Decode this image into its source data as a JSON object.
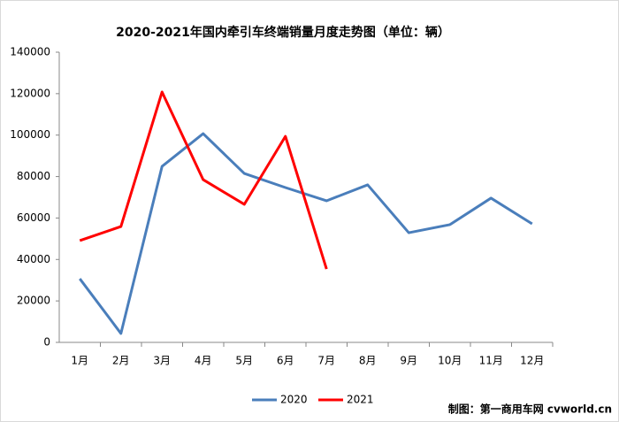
{
  "chart_data": {
    "type": "line",
    "title": "2020-2021年国内牵引车终端销量月度走势图（单位：辆）",
    "categories": [
      "1月",
      "2月",
      "3月",
      "4月",
      "5月",
      "6月",
      "7月",
      "8月",
      "9月",
      "10月",
      "11月",
      "12月"
    ],
    "series": [
      {
        "name": "2020",
        "color": "#4a7ebb",
        "values": [
          30700,
          4300,
          84900,
          100700,
          81500,
          74700,
          68300,
          76000,
          52900,
          56800,
          69600,
          57200
        ]
      },
      {
        "name": "2021",
        "color": "#ff0000",
        "values": [
          49100,
          55900,
          120800,
          78500,
          66600,
          99400,
          35400,
          null,
          null,
          null,
          null,
          null
        ]
      }
    ],
    "ylim": [
      0,
      140000
    ],
    "yticks": [
      0,
      20000,
      40000,
      60000,
      80000,
      100000,
      120000,
      140000
    ],
    "grid": false,
    "legend": "bottom",
    "credit": "制图：第一商用车网 cvworld.cn"
  }
}
